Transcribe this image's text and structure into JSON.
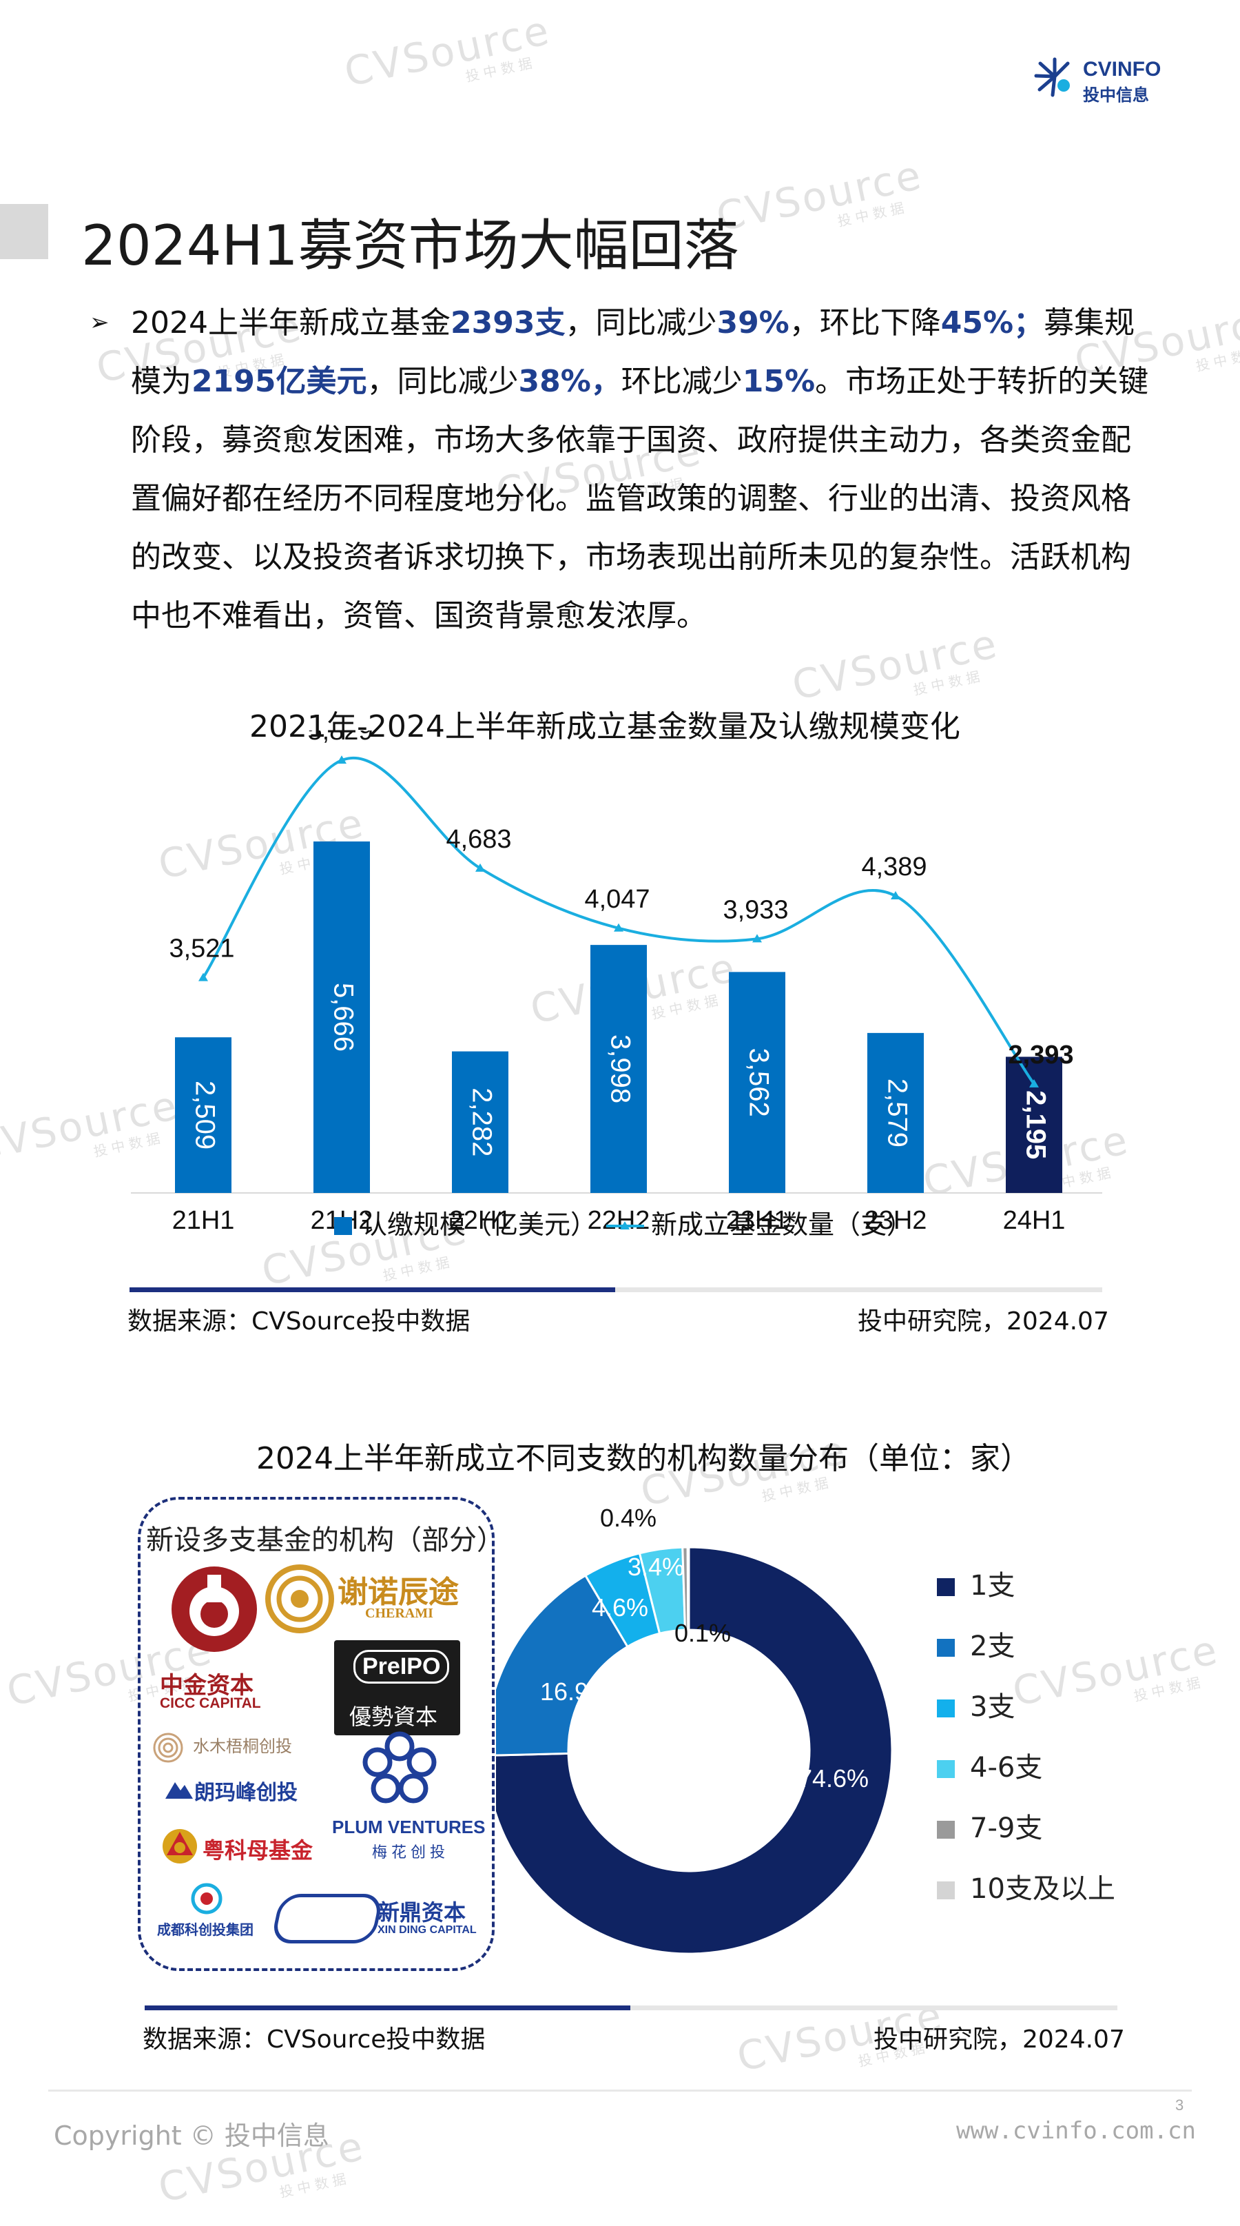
{
  "header": {
    "logo_name": "CVINFO",
    "logo_sub": "投中信息"
  },
  "page_title": "2024H1募资市场大幅回落",
  "body": {
    "bullet": "➢",
    "p1": "2024上半年新成立基金",
    "v1": "2393支",
    "p2": "，同比减少",
    "v2": "39%",
    "p3": "，环比下降",
    "v3": "45%；",
    "p4": "募集规模为",
    "v4": "2195亿美元",
    "p5": "，同比减少",
    "v5": "38%，",
    "p6": "环比减少",
    "v6": "15%",
    "p7": "。市场正处于转折的关键阶段，募资愈发困难，市场大多依靠于国资、政府提供主动力，各类资金配置偏好都在经历不同程度地分化。监管政策的调整、行业的出清、投资风格的改变、以及投资者诉求切换下，市场表现出前所未见的复杂性。活跃机构中也不难看出，资管、国资背景愈发浓厚。"
  },
  "chart1": {
    "title": "2021年-2024上半年新成立基金数量及认缴规模变化",
    "source": "数据来源：CVSource投中数据",
    "institute": "投中研究院，2024.07"
  },
  "chart2": {
    "title": "2024上半年新成立不同支数的机构数量分布（单位：家）",
    "source": "数据来源：CVSource投中数据",
    "institute": "投中研究院，2024.07"
  },
  "orgs": {
    "title": "新设多支基金的机构（部分）",
    "items": [
      "中金资本",
      "CICC CAPITAL",
      "谢诺辰途",
      "CHERAMI",
      "PreIPO",
      "優勢資本",
      "水木梧桐创投",
      "朗玛峰创投",
      "PLUM VENTURES",
      "梅花创投",
      "粤科母基金",
      "成都科创投集团",
      "新鼎资本",
      "XIN DING CAPITAL"
    ]
  },
  "chart_data": [
    {
      "type": "bar",
      "categories": [
        "21H1",
        "21H2",
        "22H1",
        "22H2",
        "23H1",
        "23H2",
        "24H1"
      ],
      "series": [
        {
          "name": "认缴规模（亿美元）",
          "type": "bar",
          "values": [
            2509,
            5666,
            2282,
            3998,
            3562,
            2579,
            2195
          ],
          "labels": [
            "2,509",
            "5,666",
            "2,282",
            "3,998",
            "3,562",
            "2,579",
            "2,195"
          ],
          "color": "#0070c0",
          "highlight_color": "#0f1f5c"
        },
        {
          "name": "新成立基金数量（支）",
          "type": "line",
          "values": [
            3521,
            5829,
            4683,
            4047,
            3933,
            4389,
            2393
          ],
          "labels": [
            "3,521",
            "5,829",
            "4,683",
            "4,047",
            "3,933",
            "4,389",
            "2,393"
          ],
          "color": "#1aaee0"
        }
      ]
    },
    {
      "type": "pie",
      "categories": [
        "1支",
        "2支",
        "3支",
        "4-6支",
        "7-9支",
        "10支及以上"
      ],
      "values": [
        74.6,
        16.9,
        4.6,
        3.4,
        0.4,
        0.1
      ],
      "labels": [
        "74.6%",
        "16.9%",
        "4.6%",
        "3.4%",
        "0.4%",
        "0.1%"
      ],
      "colors": [
        "#0f2362",
        "#1272c0",
        "#13b0ec",
        "#4cd0f0",
        "#9a9a9a",
        "#d4d4d4"
      ]
    }
  ],
  "footer": {
    "copyright": "Copyright © 投中信息",
    "url": "www.cvinfo.com.cn",
    "page": "3"
  }
}
